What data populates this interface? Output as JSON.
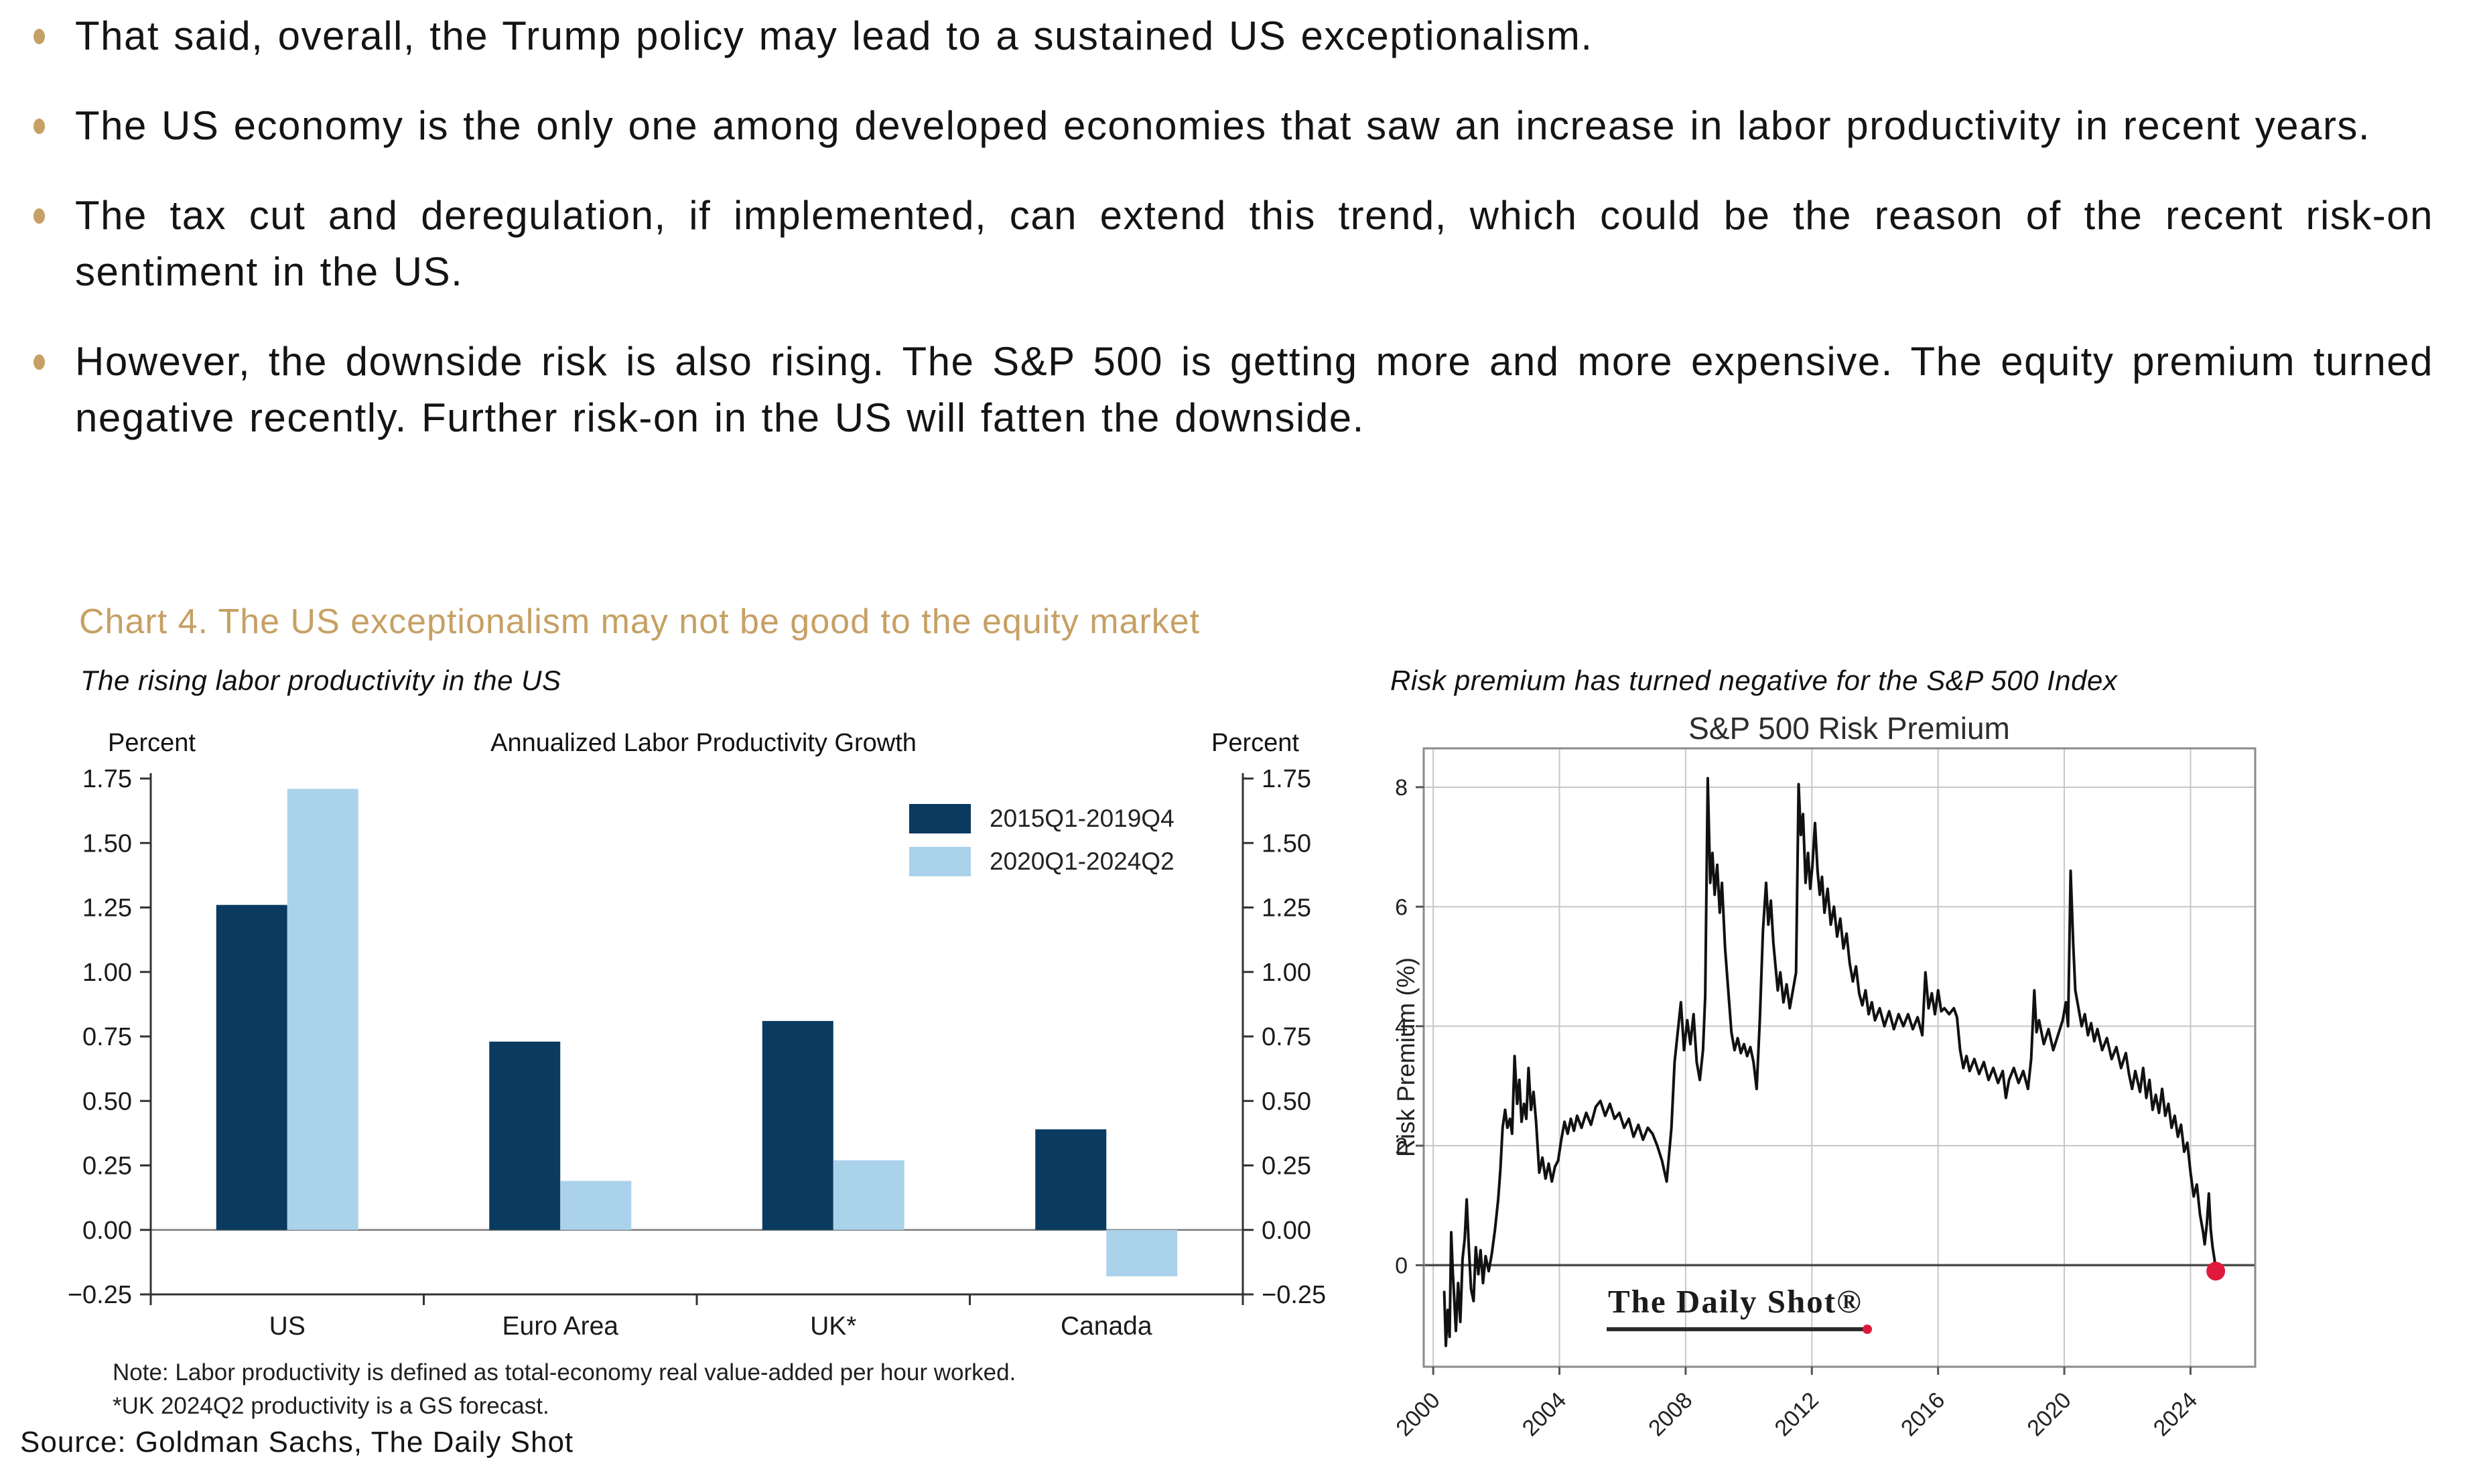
{
  "bullets": [
    "That said, overall, the Trump policy may lead to a sustained US exceptionalism.",
    "The US economy is the only one among developed economies that saw an increase in labor productivity in recent years.",
    "The tax cut and deregulation, if implemented, can extend this trend, which could be the reason of the recent risk-on sentiment in the US.",
    "However, the downside risk is also rising. The S&P 500 is getting more and more expensive. The equity premium turned negative recently. Further risk-on in the US will fatten the downside."
  ],
  "chart_heading": "Chart 4. The US exceptionalism may not be good to the equity market",
  "left_panel": {
    "subtitle": "The rising labor productivity in the US",
    "note_line1": "Note: Labor productivity is defined as total-economy real value-added per hour worked.",
    "note_line2": "*UK 2024Q2 productivity is a GS forecast."
  },
  "right_panel": {
    "subtitle": "Risk premium has turned negative for the S&P 500 Index",
    "watermark": "The Daily Shot®"
  },
  "source": "Source: Goldman Sachs, The Daily Shot",
  "colors": {
    "accent_gold": "#C6A064",
    "navy": "#0A3A5F",
    "light_blue": "#ABD2EB",
    "line_black": "#111111",
    "endpoint_red": "#E0193C"
  },
  "chart_data": [
    {
      "type": "bar",
      "title": "Annualized Labor Productivity Growth",
      "axis_unit_label": "Percent",
      "categories": [
        "US",
        "Euro Area",
        "UK*",
        "Canada"
      ],
      "series": [
        {
          "name": "2015Q1-2019Q4",
          "color": "#0A3A5F",
          "values": [
            1.26,
            0.73,
            0.81,
            0.39
          ]
        },
        {
          "name": "2020Q1-2024Q2",
          "color": "#ABD2EB",
          "values": [
            1.71,
            0.19,
            0.27,
            -0.18
          ]
        }
      ],
      "ylim": [
        -0.25,
        1.75
      ],
      "ytick_step": 0.25,
      "legend_position": "upper right",
      "grid": false
    },
    {
      "type": "line",
      "title": "S&P 500 Risk Premium",
      "ylabel": "Risk Premium (%)",
      "xticks": [
        2000,
        2004,
        2008,
        2012,
        2016,
        2020,
        2024
      ],
      "yticks": [
        0,
        2,
        4,
        6,
        8
      ],
      "xlim": [
        1999.7,
        2026.05
      ],
      "ylim": [
        -1.7,
        8.65
      ],
      "grid": true,
      "line_color": "#111111",
      "endpoint": {
        "x": 2024.8,
        "y": -0.1,
        "color": "#E0193C"
      },
      "points": [
        [
          2000.35,
          -0.45
        ],
        [
          2000.4,
          -1.35
        ],
        [
          2000.46,
          -0.75
        ],
        [
          2000.52,
          -1.2
        ],
        [
          2000.57,
          0.55
        ],
        [
          2000.62,
          -0.1
        ],
        [
          2000.67,
          -0.6
        ],
        [
          2000.72,
          -1.1
        ],
        [
          2000.79,
          -0.3
        ],
        [
          2000.86,
          -0.95
        ],
        [
          2000.93,
          0.1
        ],
        [
          2001.0,
          0.45
        ],
        [
          2001.06,
          1.1
        ],
        [
          2001.13,
          0.3
        ],
        [
          2001.2,
          -0.4
        ],
        [
          2001.28,
          -0.6
        ],
        [
          2001.35,
          0.3
        ],
        [
          2001.43,
          -0.15
        ],
        [
          2001.5,
          0.25
        ],
        [
          2001.58,
          -0.3
        ],
        [
          2001.66,
          0.15
        ],
        [
          2001.76,
          -0.1
        ],
        [
          2001.86,
          0.2
        ],
        [
          2001.96,
          0.6
        ],
        [
          2002.06,
          1.1
        ],
        [
          2002.13,
          1.6
        ],
        [
          2002.2,
          2.3
        ],
        [
          2002.28,
          2.6
        ],
        [
          2002.35,
          2.3
        ],
        [
          2002.43,
          2.45
        ],
        [
          2002.5,
          2.2
        ],
        [
          2002.58,
          3.5
        ],
        [
          2002.66,
          2.7
        ],
        [
          2002.73,
          3.1
        ],
        [
          2002.8,
          2.4
        ],
        [
          2002.88,
          2.7
        ],
        [
          2002.95,
          2.45
        ],
        [
          2003.02,
          3.3
        ],
        [
          2003.1,
          2.6
        ],
        [
          2003.18,
          2.9
        ],
        [
          2003.26,
          2.4
        ],
        [
          2003.36,
          1.55
        ],
        [
          2003.46,
          1.8
        ],
        [
          2003.56,
          1.45
        ],
        [
          2003.66,
          1.7
        ],
        [
          2003.76,
          1.4
        ],
        [
          2003.86,
          1.65
        ],
        [
          2003.96,
          1.75
        ],
        [
          2004.06,
          2.1
        ],
        [
          2004.16,
          2.4
        ],
        [
          2004.26,
          2.2
        ],
        [
          2004.36,
          2.45
        ],
        [
          2004.46,
          2.25
        ],
        [
          2004.56,
          2.5
        ],
        [
          2004.7,
          2.3
        ],
        [
          2004.85,
          2.55
        ],
        [
          2005.0,
          2.35
        ],
        [
          2005.15,
          2.65
        ],
        [
          2005.3,
          2.75
        ],
        [
          2005.45,
          2.5
        ],
        [
          2005.6,
          2.7
        ],
        [
          2005.75,
          2.45
        ],
        [
          2005.9,
          2.55
        ],
        [
          2006.05,
          2.3
        ],
        [
          2006.2,
          2.45
        ],
        [
          2006.35,
          2.15
        ],
        [
          2006.5,
          2.35
        ],
        [
          2006.65,
          2.1
        ],
        [
          2006.8,
          2.3
        ],
        [
          2006.95,
          2.2
        ],
        [
          2007.1,
          2.0
        ],
        [
          2007.25,
          1.75
        ],
        [
          2007.4,
          1.4
        ],
        [
          2007.55,
          2.3
        ],
        [
          2007.65,
          3.4
        ],
        [
          2007.75,
          3.9
        ],
        [
          2007.85,
          4.4
        ],
        [
          2007.95,
          3.6
        ],
        [
          2008.05,
          4.1
        ],
        [
          2008.15,
          3.7
        ],
        [
          2008.25,
          4.2
        ],
        [
          2008.35,
          3.4
        ],
        [
          2008.45,
          3.1
        ],
        [
          2008.55,
          3.6
        ],
        [
          2008.62,
          4.5
        ],
        [
          2008.7,
          8.15
        ],
        [
          2008.78,
          6.4
        ],
        [
          2008.85,
          6.9
        ],
        [
          2008.92,
          6.2
        ],
        [
          2009.0,
          6.7
        ],
        [
          2009.08,
          5.9
        ],
        [
          2009.15,
          6.4
        ],
        [
          2009.25,
          5.3
        ],
        [
          2009.35,
          4.6
        ],
        [
          2009.45,
          3.9
        ],
        [
          2009.55,
          3.6
        ],
        [
          2009.65,
          3.8
        ],
        [
          2009.75,
          3.55
        ],
        [
          2009.85,
          3.7
        ],
        [
          2009.95,
          3.5
        ],
        [
          2010.05,
          3.65
        ],
        [
          2010.15,
          3.4
        ],
        [
          2010.25,
          2.95
        ],
        [
          2010.35,
          4.1
        ],
        [
          2010.45,
          5.6
        ],
        [
          2010.55,
          6.4
        ],
        [
          2010.62,
          5.7
        ],
        [
          2010.7,
          6.1
        ],
        [
          2010.78,
          5.4
        ],
        [
          2010.85,
          5.0
        ],
        [
          2010.92,
          4.6
        ],
        [
          2011.0,
          4.9
        ],
        [
          2011.1,
          4.4
        ],
        [
          2011.2,
          4.7
        ],
        [
          2011.3,
          4.3
        ],
        [
          2011.4,
          4.6
        ],
        [
          2011.5,
          4.9
        ],
        [
          2011.58,
          8.05
        ],
        [
          2011.65,
          7.2
        ],
        [
          2011.72,
          7.55
        ],
        [
          2011.8,
          6.4
        ],
        [
          2011.88,
          6.9
        ],
        [
          2011.95,
          6.3
        ],
        [
          2012.02,
          6.7
        ],
        [
          2012.1,
          7.4
        ],
        [
          2012.18,
          6.6
        ],
        [
          2012.25,
          6.2
        ],
        [
          2012.32,
          6.5
        ],
        [
          2012.4,
          5.9
        ],
        [
          2012.5,
          6.3
        ],
        [
          2012.6,
          5.7
        ],
        [
          2012.7,
          6.0
        ],
        [
          2012.8,
          5.5
        ],
        [
          2012.9,
          5.8
        ],
        [
          2013.0,
          5.3
        ],
        [
          2013.1,
          5.55
        ],
        [
          2013.2,
          5.05
        ],
        [
          2013.3,
          4.75
        ],
        [
          2013.4,
          5.0
        ],
        [
          2013.5,
          4.55
        ],
        [
          2013.6,
          4.35
        ],
        [
          2013.7,
          4.6
        ],
        [
          2013.8,
          4.2
        ],
        [
          2013.9,
          4.4
        ],
        [
          2014.0,
          4.1
        ],
        [
          2014.15,
          4.3
        ],
        [
          2014.3,
          4.0
        ],
        [
          2014.45,
          4.25
        ],
        [
          2014.6,
          3.95
        ],
        [
          2014.75,
          4.2
        ],
        [
          2014.9,
          4.0
        ],
        [
          2015.05,
          4.2
        ],
        [
          2015.2,
          3.95
        ],
        [
          2015.35,
          4.15
        ],
        [
          2015.5,
          3.85
        ],
        [
          2015.6,
          4.9
        ],
        [
          2015.7,
          4.3
        ],
        [
          2015.8,
          4.55
        ],
        [
          2015.9,
          4.2
        ],
        [
          2016.0,
          4.6
        ],
        [
          2016.1,
          4.25
        ],
        [
          2016.2,
          4.3
        ],
        [
          2016.35,
          4.2
        ],
        [
          2016.5,
          4.3
        ],
        [
          2016.6,
          4.15
        ],
        [
          2016.7,
          3.6
        ],
        [
          2016.8,
          3.3
        ],
        [
          2016.9,
          3.5
        ],
        [
          2017.0,
          3.25
        ],
        [
          2017.15,
          3.45
        ],
        [
          2017.3,
          3.2
        ],
        [
          2017.45,
          3.4
        ],
        [
          2017.6,
          3.1
        ],
        [
          2017.75,
          3.3
        ],
        [
          2017.9,
          3.05
        ],
        [
          2018.05,
          3.25
        ],
        [
          2018.15,
          2.8
        ],
        [
          2018.25,
          3.1
        ],
        [
          2018.4,
          3.3
        ],
        [
          2018.55,
          3.05
        ],
        [
          2018.7,
          3.25
        ],
        [
          2018.85,
          2.95
        ],
        [
          2018.95,
          3.45
        ],
        [
          2019.05,
          4.6
        ],
        [
          2019.12,
          3.9
        ],
        [
          2019.2,
          4.1
        ],
        [
          2019.35,
          3.7
        ],
        [
          2019.5,
          3.95
        ],
        [
          2019.65,
          3.6
        ],
        [
          2019.8,
          3.85
        ],
        [
          2019.95,
          4.1
        ],
        [
          2020.05,
          4.4
        ],
        [
          2020.12,
          4.0
        ],
        [
          2020.2,
          6.6
        ],
        [
          2020.28,
          5.4
        ],
        [
          2020.35,
          4.6
        ],
        [
          2020.45,
          4.3
        ],
        [
          2020.55,
          4.0
        ],
        [
          2020.65,
          4.2
        ],
        [
          2020.75,
          3.85
        ],
        [
          2020.85,
          4.05
        ],
        [
          2020.95,
          3.75
        ],
        [
          2021.05,
          3.95
        ],
        [
          2021.2,
          3.6
        ],
        [
          2021.35,
          3.8
        ],
        [
          2021.5,
          3.45
        ],
        [
          2021.65,
          3.65
        ],
        [
          2021.8,
          3.3
        ],
        [
          2021.95,
          3.55
        ],
        [
          2022.05,
          3.2
        ],
        [
          2022.15,
          2.95
        ],
        [
          2022.25,
          3.25
        ],
        [
          2022.4,
          2.9
        ],
        [
          2022.5,
          3.3
        ],
        [
          2022.6,
          2.8
        ],
        [
          2022.7,
          3.1
        ],
        [
          2022.8,
          2.6
        ],
        [
          2022.9,
          2.85
        ],
        [
          2023.0,
          2.55
        ],
        [
          2023.1,
          2.95
        ],
        [
          2023.2,
          2.5
        ],
        [
          2023.3,
          2.7
        ],
        [
          2023.4,
          2.3
        ],
        [
          2023.5,
          2.5
        ],
        [
          2023.6,
          2.15
        ],
        [
          2023.7,
          2.35
        ],
        [
          2023.8,
          1.9
        ],
        [
          2023.9,
          2.05
        ],
        [
          2024.0,
          1.55
        ],
        [
          2024.1,
          1.15
        ],
        [
          2024.2,
          1.35
        ],
        [
          2024.3,
          0.85
        ],
        [
          2024.4,
          0.55
        ],
        [
          2024.45,
          0.35
        ],
        [
          2024.52,
          0.7
        ],
        [
          2024.58,
          1.2
        ],
        [
          2024.64,
          0.6
        ],
        [
          2024.7,
          0.3
        ],
        [
          2024.76,
          0.1
        ],
        [
          2024.8,
          -0.1
        ]
      ]
    }
  ]
}
